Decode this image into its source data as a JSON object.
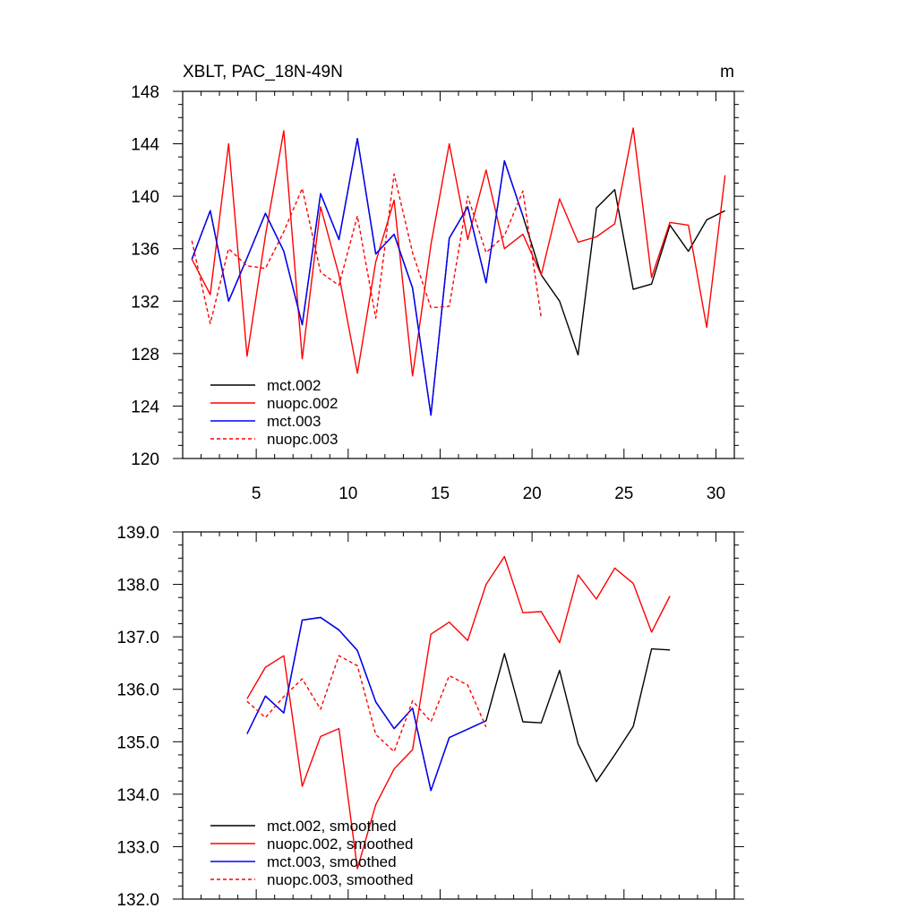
{
  "chart_data": [
    {
      "type": "line",
      "title": "XBLT, PAC_18N-49N",
      "units": "m",
      "xlim": [
        1,
        31
      ],
      "ylim": [
        120,
        148
      ],
      "xticks": [
        5,
        10,
        15,
        20,
        25,
        30
      ],
      "yticks": [
        120,
        124,
        128,
        132,
        136,
        140,
        144,
        148
      ],
      "ytick_decimals": 0,
      "legend_position": "bottom-left",
      "series": [
        {
          "name": "mct.002",
          "color": "#000000",
          "dash": false,
          "x": [
            1.5,
            2.5,
            3.5,
            4.5,
            5.5,
            6.5,
            7.5,
            8.5,
            9.5,
            10.5,
            11.5,
            12.5,
            13.5,
            14.5,
            15.5,
            16.5,
            17.5,
            18.5,
            19.5,
            20.5,
            21.5,
            22.5,
            23.5,
            24.5,
            25.5,
            26.5,
            27.5,
            28.5,
            29.5,
            30.5
          ],
          "y": [
            135.2,
            138.9,
            132.0,
            135.3,
            138.7,
            135.8,
            130.2,
            140.2,
            136.7,
            144.4,
            135.6,
            137.1,
            133.0,
            123.3,
            136.8,
            139.2,
            133.4,
            142.7,
            138.5,
            134.0,
            132.0,
            127.9,
            139.1,
            140.5,
            132.9,
            133.3,
            137.8,
            135.8,
            138.2,
            138.9
          ]
        },
        {
          "name": "nuopc.002",
          "color": "#ff0000",
          "dash": false,
          "x": [
            1.5,
            2.5,
            3.5,
            4.5,
            5.5,
            6.5,
            7.5,
            8.5,
            9.5,
            10.5,
            11.5,
            12.5,
            13.5,
            14.5,
            15.5,
            16.5,
            17.5,
            18.5,
            19.5,
            20.5,
            21.5,
            22.5,
            23.5,
            24.5,
            25.5,
            26.5,
            27.5,
            28.5,
            29.5,
            30.5
          ],
          "y": [
            135.2,
            132.5,
            144.0,
            127.8,
            137.0,
            145.0,
            127.6,
            139.2,
            134.0,
            126.5,
            135.0,
            139.7,
            126.3,
            136.3,
            144.0,
            136.7,
            142.0,
            136.0,
            137.1,
            134.0,
            139.8,
            136.5,
            136.9,
            137.9,
            145.2,
            133.8,
            138.0,
            137.8,
            130.0,
            141.6
          ]
        },
        {
          "name": "mct.003",
          "color": "#0000ff",
          "dash": false,
          "x": [
            1.5,
            2.5,
            3.5,
            4.5,
            5.5,
            6.5,
            7.5,
            8.5,
            9.5,
            10.5,
            11.5,
            12.5,
            13.5,
            14.5,
            15.5,
            16.5,
            17.5,
            18.5,
            19.5
          ],
          "y": [
            135.2,
            138.9,
            132.0,
            135.3,
            138.7,
            135.8,
            130.2,
            140.2,
            136.7,
            144.4,
            135.6,
            137.1,
            133.0,
            123.3,
            136.8,
            139.2,
            133.4,
            142.7,
            138.5
          ]
        },
        {
          "name": "nuopc.003",
          "color": "#ff0000",
          "dash": true,
          "x": [
            1.5,
            2.5,
            3.5,
            4.5,
            5.5,
            6.5,
            7.5,
            8.5,
            9.5,
            10.5,
            11.5,
            12.5,
            13.5,
            14.5,
            15.5,
            16.5,
            17.5,
            18.5,
            19.5,
            20.5
          ],
          "y": [
            136.6,
            130.3,
            136.0,
            134.7,
            134.5,
            137.3,
            140.6,
            134.2,
            133.2,
            138.5,
            130.7,
            141.7,
            135.7,
            131.5,
            131.6,
            140.0,
            135.7,
            137.0,
            140.4,
            130.7
          ]
        }
      ]
    },
    {
      "type": "line",
      "title": "",
      "units": "",
      "xlim": [
        1,
        31
      ],
      "ylim": [
        132,
        139
      ],
      "xticks": [
        5,
        10,
        15,
        20,
        25,
        30
      ],
      "show_xtick_labels": false,
      "yticks": [
        132,
        133,
        134,
        135,
        136,
        137,
        138,
        139
      ],
      "ytick_decimals": 1,
      "legend_position": "bottom-left",
      "series": [
        {
          "name": "mct.002, smoothed",
          "color": "#000000",
          "dash": false,
          "x": [
            4.5,
            5.5,
            6.5,
            7.5,
            8.5,
            9.5,
            10.5,
            11.5,
            12.5,
            13.5,
            14.5,
            15.5,
            16.5,
            17.5,
            18.5,
            19.5,
            20.5,
            21.5,
            22.5,
            23.5,
            24.5,
            25.5,
            26.5,
            27.5
          ],
          "y": [
            135.15,
            135.87,
            135.55,
            137.32,
            137.37,
            137.13,
            136.74,
            135.76,
            135.25,
            135.64,
            134.07,
            135.08,
            135.24,
            135.4,
            136.68,
            135.38,
            135.36,
            136.36,
            134.96,
            134.24,
            134.75,
            135.29,
            136.77,
            136.75
          ]
        },
        {
          "name": "nuopc.002, smoothed",
          "color": "#ff0000",
          "dash": false,
          "x": [
            4.5,
            5.5,
            6.5,
            7.5,
            8.5,
            9.5,
            10.5,
            11.5,
            12.5,
            13.5,
            14.5,
            15.5,
            16.5,
            17.5,
            18.5,
            19.5,
            20.5,
            21.5,
            22.5,
            23.5,
            24.5,
            25.5,
            26.5,
            27.5
          ],
          "y": [
            135.82,
            136.42,
            136.64,
            134.15,
            135.1,
            135.25,
            132.58,
            133.8,
            134.48,
            134.85,
            137.05,
            137.28,
            136.93,
            138.0,
            138.53,
            137.46,
            137.48,
            136.89,
            138.18,
            137.72,
            138.31,
            138.02,
            137.09,
            137.78
          ]
        },
        {
          "name": "mct.003, smoothed",
          "color": "#0000ff",
          "dash": false,
          "x": [
            4.5,
            5.5,
            6.5,
            7.5,
            8.5,
            9.5,
            10.5,
            11.5,
            12.5,
            13.5,
            14.5,
            15.5,
            16.5,
            17.5
          ],
          "y": [
            135.15,
            135.87,
            135.55,
            137.32,
            137.37,
            137.13,
            136.74,
            135.76,
            135.25,
            135.64,
            134.07,
            135.08,
            135.24,
            135.4
          ]
        },
        {
          "name": "nuopc.003, smoothed",
          "color": "#ff0000",
          "dash": true,
          "x": [
            4.5,
            5.5,
            6.5,
            7.5,
            8.5,
            9.5,
            10.5,
            11.5,
            12.5,
            13.5,
            14.5,
            15.5,
            16.5,
            17.5
          ],
          "y": [
            135.77,
            135.46,
            135.86,
            136.2,
            135.62,
            136.64,
            136.45,
            135.14,
            134.81,
            135.78,
            135.38,
            136.26,
            136.08,
            135.28
          ]
        }
      ]
    }
  ]
}
